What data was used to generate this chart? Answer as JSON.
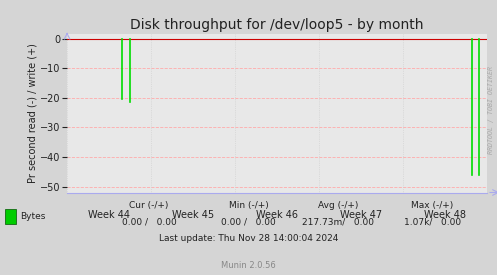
{
  "title": "Disk throughput for /dev/loop5 - by month",
  "ylabel": "Pr second read (-) / write (+)",
  "background_color": "#d5d5d5",
  "plot_bg_color": "#e8e8e8",
  "grid_color_h": "#ffaaaa",
  "grid_color_v": "#cccccc",
  "ylim": [
    -52,
    1.5
  ],
  "yticks": [
    0.0,
    -10.0,
    -20.0,
    -30.0,
    -40.0,
    -50.0
  ],
  "x_labels": [
    "Week 44",
    "Week 45",
    "Week 46",
    "Week 47",
    "Week 48"
  ],
  "line_color": "#00dd00",
  "zero_line_color": "#cc0000",
  "axis_arrow_color": "#aaaaee",
  "text_color": "#222222",
  "legend_label": "Bytes",
  "legend_color": "#00cc00",
  "footer_line3": "Last update: Thu Nov 28 14:00:04 2024",
  "footer_munin": "Munin 2.0.56",
  "watermark": "RRDTOOL / TOBI OETIKER",
  "title_fontsize": 10,
  "ylabel_fontsize": 7,
  "tick_fontsize": 7,
  "footer_fontsize": 6.5,
  "munin_fontsize": 6
}
